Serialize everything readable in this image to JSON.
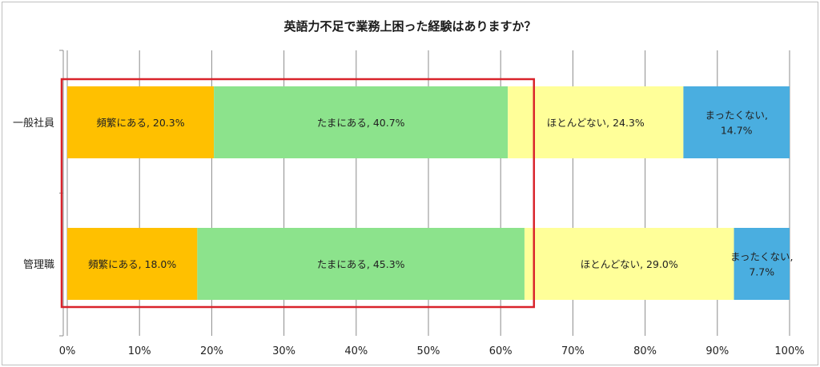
{
  "chart_data": {
    "type": "bar",
    "orientation": "horizontal",
    "stacked": true,
    "title": "英語力不足で業務上困った経験はありますか？",
    "categories": [
      "一般社員",
      "管理職"
    ],
    "series": [
      {
        "name": "頻繁にある",
        "values": [
          20.3,
          18.0
        ],
        "color": "#ffc000",
        "labels": [
          [
            "頻繁にある, 20.3%"
          ],
          [
            "頻繁にある, 18.0%"
          ]
        ]
      },
      {
        "name": "たまにある",
        "values": [
          40.7,
          45.3
        ],
        "color": "#8ce38c",
        "labels": [
          [
            "たまにある, 40.7%"
          ],
          [
            "たまにある, 45.3%"
          ]
        ]
      },
      {
        "name": "ほとんどない",
        "values": [
          24.3,
          29.0
        ],
        "color": "#ffff99",
        "labels": [
          [
            "ほとんどない, 24.3%"
          ],
          [
            "ほとんどない, 29.0%"
          ]
        ]
      },
      {
        "name": "まったくない",
        "values": [
          14.7,
          7.7
        ],
        "color": "#4aaee0",
        "labels": [
          [
            "まったくない,",
            "14.7%"
          ],
          [
            "まったくない,",
            "7.7%"
          ]
        ]
      }
    ],
    "xlim": [
      0,
      100
    ],
    "ticks": [
      "0%",
      "10%",
      "20%",
      "30%",
      "40%",
      "50%",
      "60%",
      "70%",
      "80%",
      "90%",
      "100%"
    ],
    "grid": true,
    "highlight": {
      "color": "#d9232b",
      "range": [
        0,
        64.5
      ]
    }
  }
}
